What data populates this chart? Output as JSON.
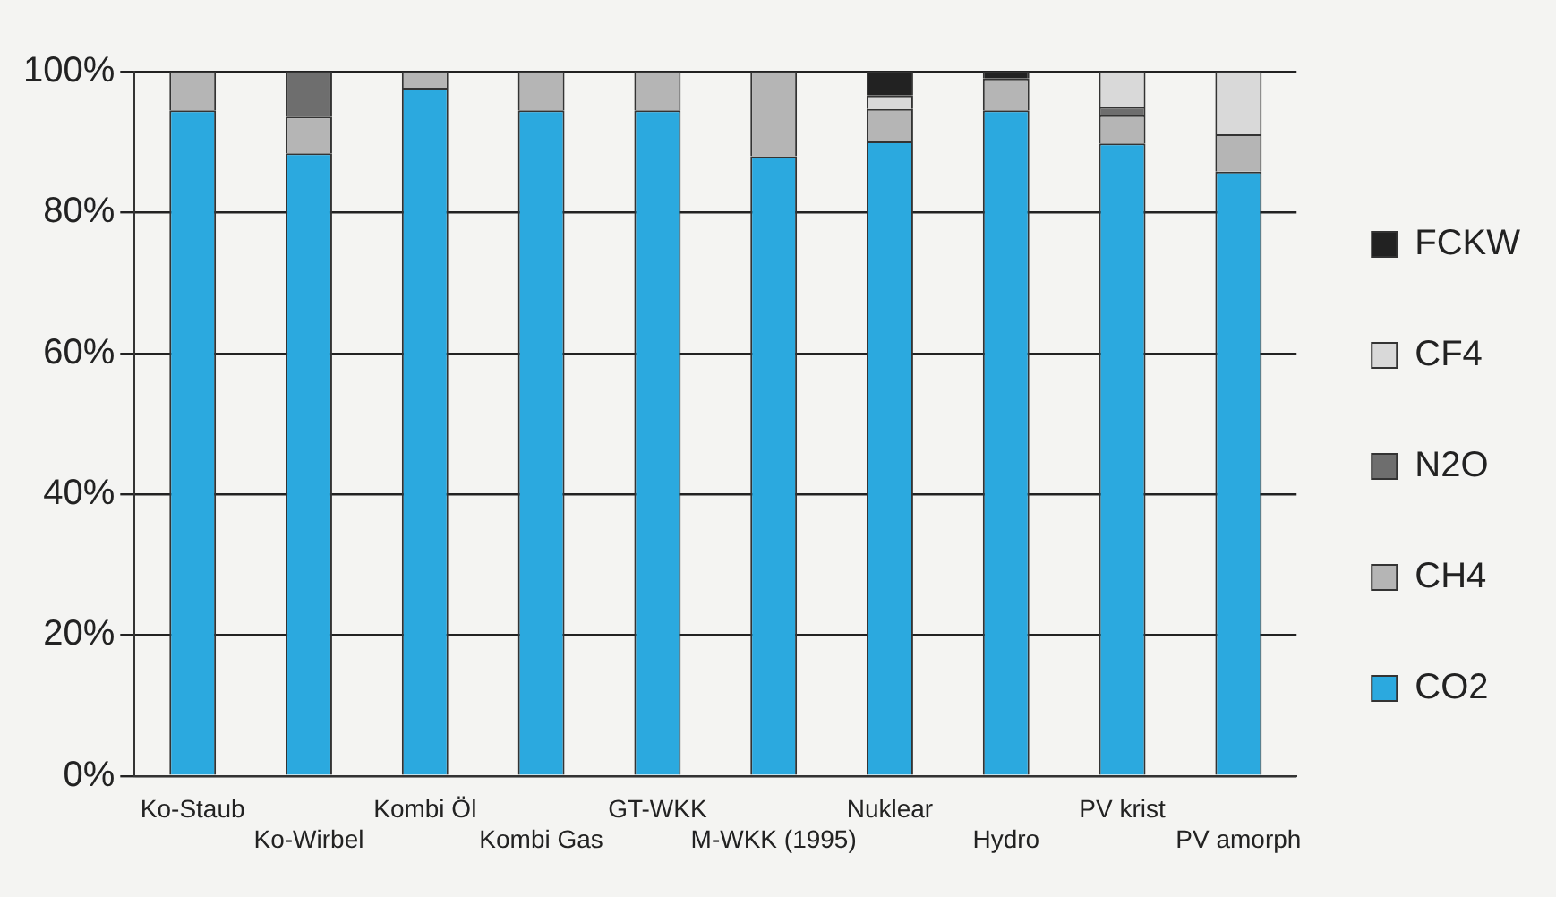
{
  "chart_data": {
    "type": "bar",
    "stacked": true,
    "categories": [
      "Ko-Staub",
      "Ko-Wirbel",
      "Kombi Öl",
      "Kombi Gas",
      "GT-WKK",
      "M-WKK (1995)",
      "Nuklear",
      "Hydro",
      "PV krist",
      "PV amorph"
    ],
    "series": [
      {
        "name": "CO2",
        "color": "#2ba9df",
        "values": [
          94.5,
          88.4,
          97.7,
          94.5,
          94.5,
          88,
          90.1,
          94.5,
          89.8,
          85.8
        ]
      },
      {
        "name": "CH4",
        "color": "#b5b5b5",
        "values": [
          5.5,
          5.2,
          2.3,
          5.5,
          5.5,
          12,
          4.6,
          4.5,
          4,
          5.3
        ]
      },
      {
        "name": "N2O",
        "color": "#6e6e6e",
        "values": [
          0,
          6.4,
          0,
          0,
          0,
          0,
          0,
          0,
          1.2,
          0
        ]
      },
      {
        "name": "CF4",
        "color": "#d9d9d9",
        "values": [
          0,
          0,
          0,
          0,
          0,
          0,
          1.9,
          0,
          5,
          8.9
        ]
      },
      {
        "name": "FCKW",
        "color": "#222222",
        "values": [
          0,
          0,
          0,
          0,
          0,
          0,
          3.4,
          1,
          0,
          0
        ]
      }
    ],
    "ylim": [
      0,
      100
    ],
    "yticks": [
      {
        "value": 0,
        "label": "0%"
      },
      {
        "value": 20,
        "label": "20%"
      },
      {
        "value": 40,
        "label": "40%"
      },
      {
        "value": 60,
        "label": "60%"
      },
      {
        "value": 80,
        "label": "80%"
      },
      {
        "value": 100,
        "label": "100%"
      }
    ],
    "grid": "y",
    "legend": "right"
  }
}
